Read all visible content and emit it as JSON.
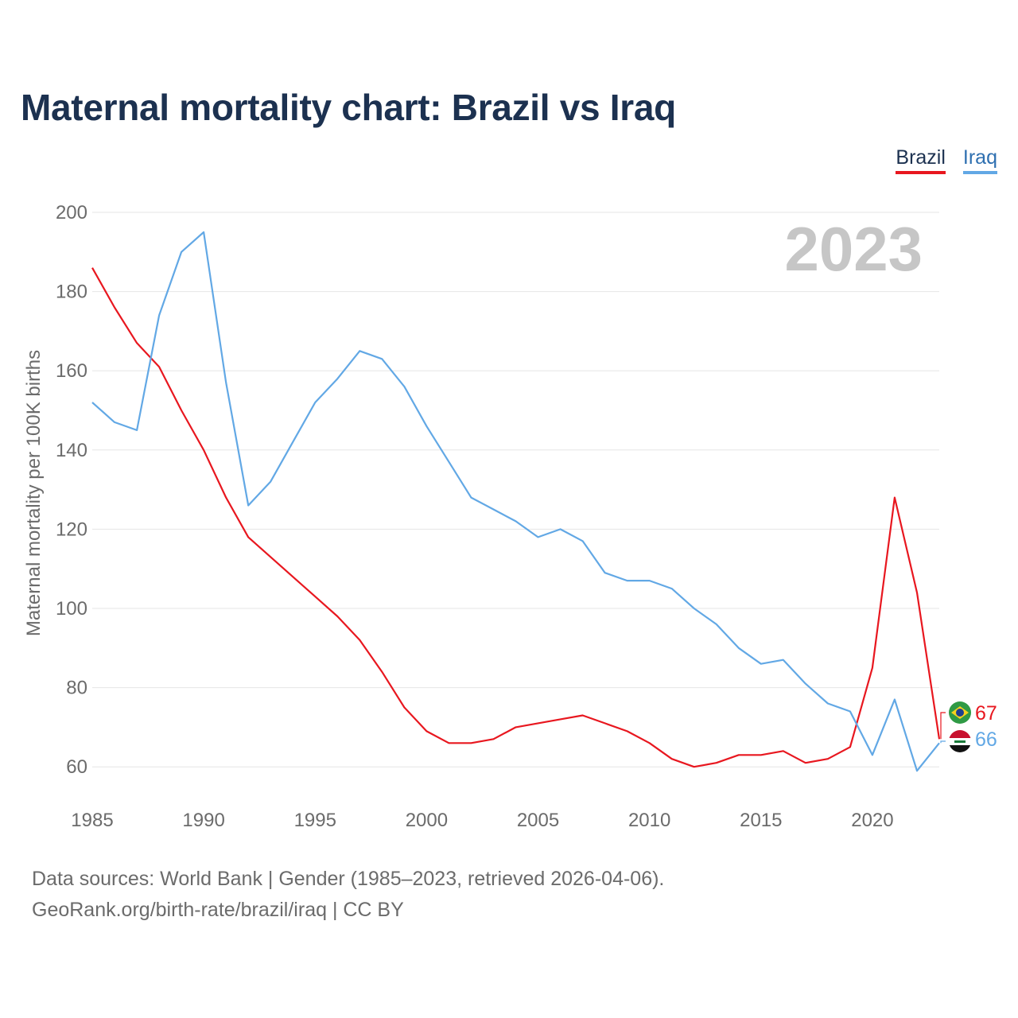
{
  "title": "Maternal mortality chart: Brazil vs Iraq",
  "legend": {
    "brazil": "Brazil",
    "iraq": "Iraq"
  },
  "year_label": "2023",
  "source_line1": "Data sources: World Bank | Gender (1985–2023, retrieved 2026-04-06).",
  "source_line2": "GeoRank.org/birth-rate/brazil/iraq | CC BY",
  "colors": {
    "brazil": "#e8171f",
    "iraq": "#62a8e5",
    "grid": "#e6e6e6",
    "title": "#1c3150"
  },
  "chart_data": {
    "type": "line",
    "title": "Maternal mortality chart: Brazil vs Iraq",
    "xlabel": "",
    "ylabel": "Maternal mortality per 100K births",
    "xlim": [
      1985,
      2023
    ],
    "ylim": [
      50,
      200
    ],
    "x_ticks": [
      1985,
      1990,
      1995,
      2000,
      2005,
      2010,
      2015,
      2020
    ],
    "y_ticks": [
      60,
      80,
      100,
      120,
      140,
      160,
      180,
      200
    ],
    "x": [
      1985,
      1986,
      1987,
      1988,
      1989,
      1990,
      1991,
      1992,
      1993,
      1994,
      1995,
      1996,
      1997,
      1998,
      1999,
      2000,
      2001,
      2002,
      2003,
      2004,
      2005,
      2006,
      2007,
      2008,
      2009,
      2010,
      2011,
      2012,
      2013,
      2014,
      2015,
      2016,
      2017,
      2018,
      2019,
      2020,
      2021,
      2022,
      2023
    ],
    "series": [
      {
        "name": "Brazil",
        "end_label": "67",
        "values": [
          186,
          176,
          167,
          161,
          150,
          140,
          128,
          118,
          113,
          108,
          103,
          98,
          92,
          84,
          75,
          69,
          66,
          66,
          67,
          70,
          71,
          72,
          73,
          71,
          69,
          66,
          62,
          60,
          61,
          63,
          63,
          64,
          61,
          62,
          65,
          85,
          128,
          104,
          67
        ]
      },
      {
        "name": "Iraq",
        "end_label": "66",
        "values": [
          152,
          147,
          145,
          174,
          190,
          195,
          157,
          126,
          132,
          142,
          152,
          158,
          165,
          163,
          156,
          146,
          137,
          128,
          125,
          122,
          118,
          120,
          117,
          109,
          107,
          107,
          105,
          100,
          96,
          90,
          86,
          87,
          81,
          76,
          74,
          63,
          77,
          59,
          66
        ]
      }
    ]
  }
}
